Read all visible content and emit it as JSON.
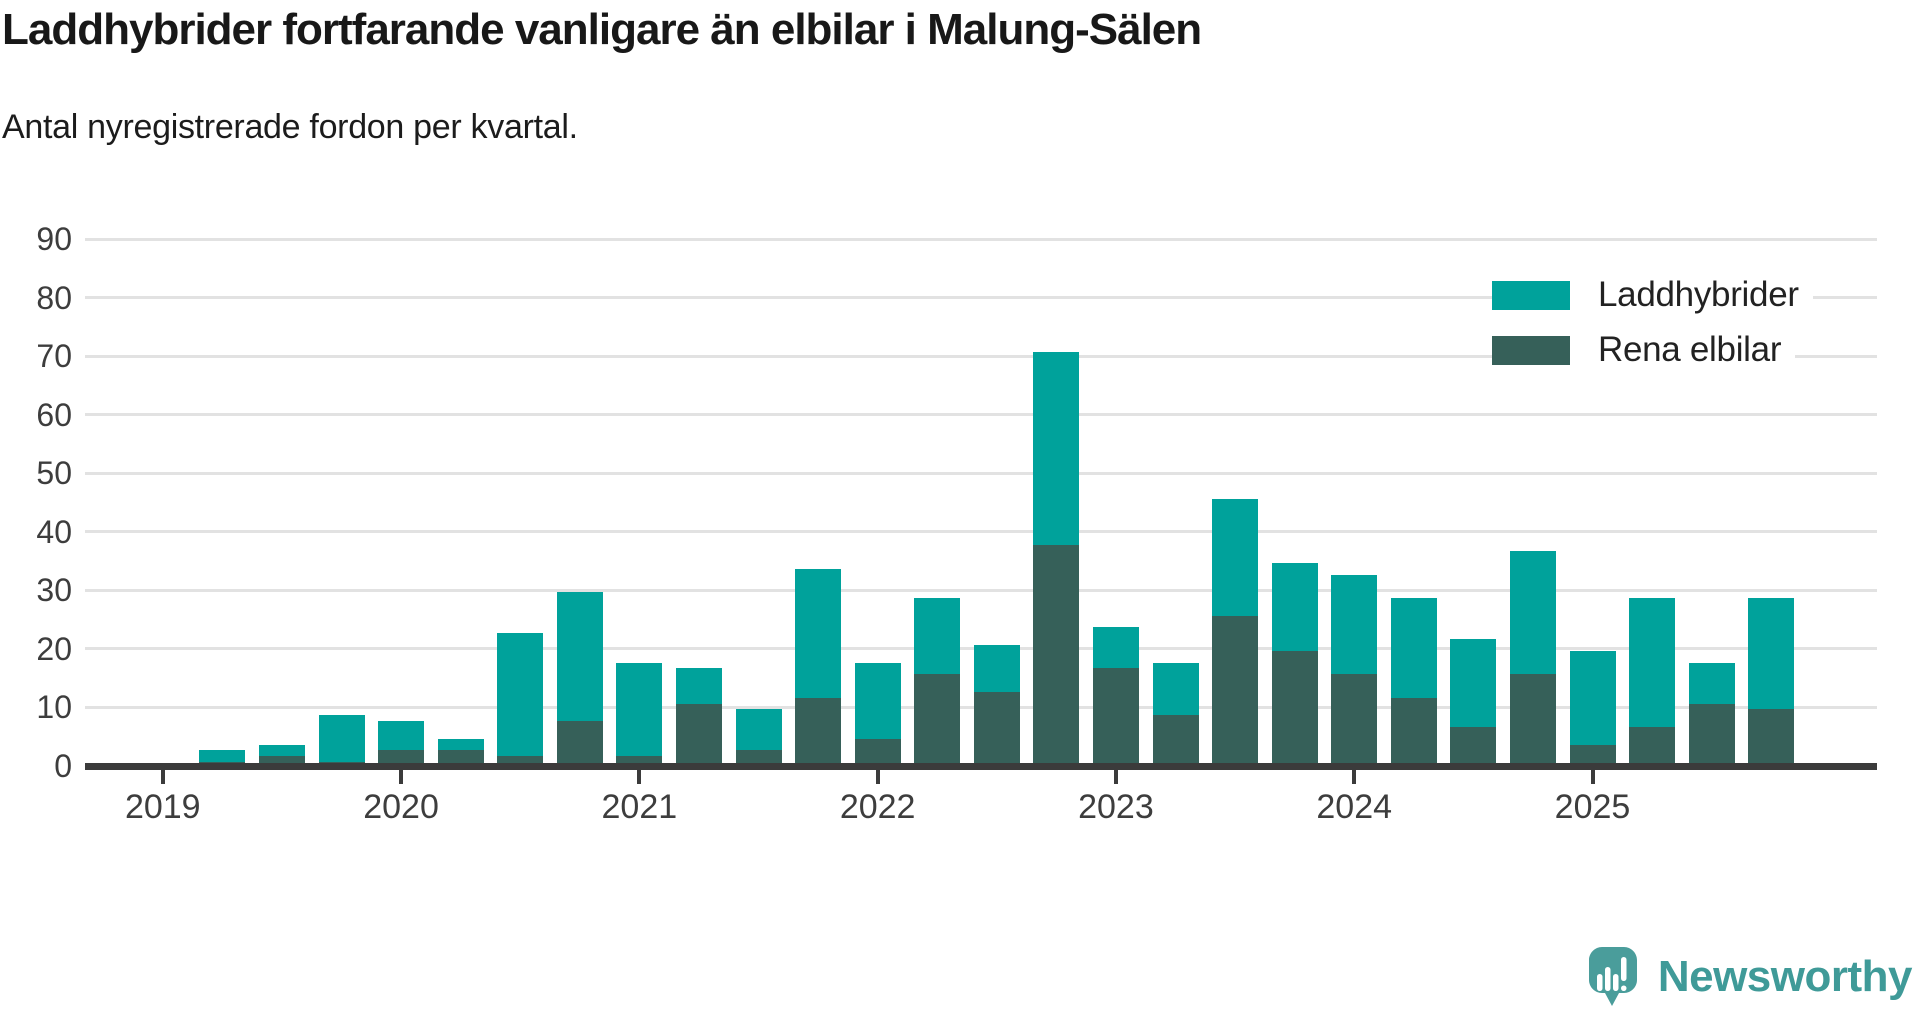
{
  "header": {
    "title": "Laddhybrider fortfarande vanligare än elbilar i Malung-Sälen",
    "subtitle": "Antal nyregistrerade fordon per kvartal."
  },
  "chart_data": {
    "type": "bar",
    "stacked": true,
    "title": "Laddhybrider fortfarande vanligare än elbilar i Malung-Sälen",
    "subtitle": "Antal nyregistrerade fordon per kvartal.",
    "x": [
      "2019 Q1",
      "2019 Q2",
      "2019 Q3",
      "2019 Q4",
      "2020 Q1",
      "2020 Q2",
      "2020 Q3",
      "2020 Q4",
      "2021 Q1",
      "2021 Q2",
      "2021 Q3",
      "2021 Q4",
      "2022 Q1",
      "2022 Q2",
      "2022 Q3",
      "2022 Q4",
      "2023 Q1",
      "2023 Q2",
      "2023 Q3",
      "2023 Q4",
      "2024 Q1",
      "2024 Q2",
      "2024 Q3",
      "2024 Q4",
      "2025 Q1",
      "2025 Q2",
      "2025 Q3",
      "2025 Q4"
    ],
    "series": [
      {
        "name": "Rena elbilar",
        "color": "#366059",
        "stack_position": "bottom",
        "values": [
          0,
          1,
          2,
          1,
          3,
          3,
          2,
          8,
          2,
          11,
          3,
          12,
          5,
          16,
          13,
          38,
          17,
          9,
          26,
          20,
          16,
          12,
          7,
          16,
          4,
          7,
          11,
          10
        ]
      },
      {
        "name": "Laddhybrider",
        "color": "#00a29b",
        "stack_position": "top",
        "values": [
          0,
          2,
          2,
          8,
          5,
          2,
          21,
          22,
          16,
          6,
          7,
          22,
          13,
          13,
          8,
          33,
          7,
          9,
          20,
          15,
          17,
          17,
          15,
          21,
          16,
          22,
          7,
          19
        ]
      }
    ],
    "totals": [
      0,
      3,
      4,
      9,
      8,
      5,
      23,
      30,
      18,
      17,
      10,
      34,
      18,
      29,
      21,
      71,
      24,
      18,
      46,
      35,
      33,
      29,
      22,
      37,
      20,
      29,
      18,
      29
    ],
    "y_ticks": [
      0,
      10,
      20,
      30,
      40,
      50,
      60,
      70,
      80,
      90
    ],
    "x_tick_labels": [
      "2019",
      "2020",
      "2021",
      "2022",
      "2023",
      "2024",
      "2025"
    ],
    "ylim": [
      0,
      90
    ],
    "grid": "horizontal",
    "legend_position": "top-right"
  },
  "legend": {
    "items": [
      {
        "label": "Laddhybrider",
        "color": "#00a29b"
      },
      {
        "label": "Rena elbilar",
        "color": "#366059"
      }
    ]
  },
  "colors": {
    "axis": "#3b3b3b",
    "gridline": "#e2e2e2",
    "tick_text": "#3d3d3d"
  },
  "branding": {
    "logo_text": "Newsworthy",
    "logo_text_color": "#3f9a98",
    "bubble_color": "#4a9d9b",
    "bubble_shade_color": "#3d8e8c",
    "bubble_glyph_color": "#ffffff"
  }
}
